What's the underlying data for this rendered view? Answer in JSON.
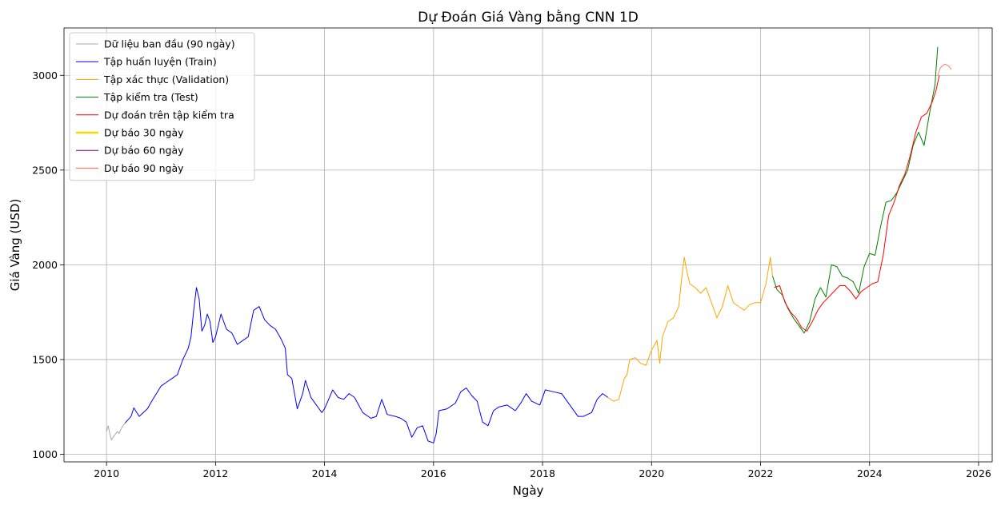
{
  "chart_data": {
    "type": "line",
    "title": "Dự Đoán Giá Vàng bằng CNN 1D",
    "xlabel": "Ngày",
    "ylabel": "Giá Vàng (USD)",
    "xlim": [
      2009.22,
      2026.25
    ],
    "ylim": [
      960,
      3250
    ],
    "xticks": [
      2010,
      2012,
      2014,
      2016,
      2018,
      2020,
      2022,
      2024,
      2026
    ],
    "yticks": [
      1000,
      1500,
      2000,
      2500,
      3000
    ],
    "grid": true,
    "legend_position": "upper-left",
    "series": [
      {
        "name": "Dữ liệu ban đầu (90 ngày)",
        "color": "#a9a9a9",
        "width": 1,
        "points": [
          [
            2010.0,
            1120
          ],
          [
            2010.03,
            1150
          ],
          [
            2010.06,
            1110
          ],
          [
            2010.09,
            1075
          ],
          [
            2010.12,
            1090
          ],
          [
            2010.16,
            1105
          ],
          [
            2010.2,
            1120
          ],
          [
            2010.23,
            1110
          ],
          [
            2010.26,
            1130
          ],
          [
            2010.3,
            1150
          ],
          [
            2010.34,
            1165
          ]
        ]
      },
      {
        "name": "Tập huấn luyện (Train)",
        "color": "#0000ff",
        "width": 1,
        "points": [
          [
            2010.34,
            1165
          ],
          [
            2010.45,
            1200
          ],
          [
            2010.5,
            1245
          ],
          [
            2010.6,
            1200
          ],
          [
            2010.75,
            1240
          ],
          [
            2010.85,
            1290
          ],
          [
            2011.0,
            1360
          ],
          [
            2011.1,
            1380
          ],
          [
            2011.2,
            1400
          ],
          [
            2011.3,
            1420
          ],
          [
            2011.4,
            1500
          ],
          [
            2011.5,
            1560
          ],
          [
            2011.55,
            1620
          ],
          [
            2011.6,
            1760
          ],
          [
            2011.65,
            1880
          ],
          [
            2011.7,
            1820
          ],
          [
            2011.75,
            1650
          ],
          [
            2011.8,
            1680
          ],
          [
            2011.85,
            1740
          ],
          [
            2011.9,
            1700
          ],
          [
            2011.95,
            1590
          ],
          [
            2012.0,
            1620
          ],
          [
            2012.1,
            1740
          ],
          [
            2012.2,
            1660
          ],
          [
            2012.3,
            1640
          ],
          [
            2012.4,
            1580
          ],
          [
            2012.5,
            1600
          ],
          [
            2012.6,
            1620
          ],
          [
            2012.7,
            1760
          ],
          [
            2012.8,
            1780
          ],
          [
            2012.9,
            1710
          ],
          [
            2013.0,
            1680
          ],
          [
            2013.1,
            1660
          ],
          [
            2013.2,
            1610
          ],
          [
            2013.28,
            1560
          ],
          [
            2013.32,
            1420
          ],
          [
            2013.4,
            1400
          ],
          [
            2013.5,
            1240
          ],
          [
            2013.6,
            1320
          ],
          [
            2013.65,
            1390
          ],
          [
            2013.75,
            1300
          ],
          [
            2013.85,
            1260
          ],
          [
            2013.95,
            1220
          ],
          [
            2014.0,
            1240
          ],
          [
            2014.15,
            1340
          ],
          [
            2014.25,
            1300
          ],
          [
            2014.35,
            1290
          ],
          [
            2014.45,
            1320
          ],
          [
            2014.55,
            1300
          ],
          [
            2014.7,
            1220
          ],
          [
            2014.85,
            1190
          ],
          [
            2014.95,
            1200
          ],
          [
            2015.05,
            1290
          ],
          [
            2015.15,
            1210
          ],
          [
            2015.3,
            1200
          ],
          [
            2015.4,
            1190
          ],
          [
            2015.5,
            1170
          ],
          [
            2015.6,
            1090
          ],
          [
            2015.7,
            1140
          ],
          [
            2015.8,
            1150
          ],
          [
            2015.9,
            1070
          ],
          [
            2016.0,
            1060
          ],
          [
            2016.05,
            1110
          ],
          [
            2016.1,
            1230
          ],
          [
            2016.25,
            1240
          ],
          [
            2016.4,
            1270
          ],
          [
            2016.5,
            1330
          ],
          [
            2016.6,
            1350
          ],
          [
            2016.7,
            1310
          ],
          [
            2016.8,
            1280
          ],
          [
            2016.9,
            1170
          ],
          [
            2017.0,
            1150
          ],
          [
            2017.1,
            1230
          ],
          [
            2017.2,
            1250
          ],
          [
            2017.35,
            1260
          ],
          [
            2017.5,
            1230
          ],
          [
            2017.6,
            1270
          ],
          [
            2017.7,
            1320
          ],
          [
            2017.8,
            1280
          ],
          [
            2017.95,
            1260
          ],
          [
            2018.05,
            1340
          ],
          [
            2018.2,
            1330
          ],
          [
            2018.35,
            1320
          ],
          [
            2018.45,
            1280
          ],
          [
            2018.55,
            1240
          ],
          [
            2018.65,
            1200
          ],
          [
            2018.75,
            1200
          ],
          [
            2018.9,
            1220
          ],
          [
            2019.0,
            1290
          ],
          [
            2019.1,
            1320
          ],
          [
            2019.2,
            1300
          ]
        ]
      },
      {
        "name": "Tập xác thực (Validation)",
        "color": "#ffa500",
        "width": 1,
        "points": [
          [
            2019.2,
            1300
          ],
          [
            2019.3,
            1280
          ],
          [
            2019.4,
            1290
          ],
          [
            2019.5,
            1400
          ],
          [
            2019.55,
            1420
          ],
          [
            2019.6,
            1500
          ],
          [
            2019.7,
            1510
          ],
          [
            2019.8,
            1480
          ],
          [
            2019.9,
            1470
          ],
          [
            2020.0,
            1550
          ],
          [
            2020.1,
            1600
          ],
          [
            2020.15,
            1480
          ],
          [
            2020.2,
            1620
          ],
          [
            2020.3,
            1700
          ],
          [
            2020.4,
            1720
          ],
          [
            2020.5,
            1780
          ],
          [
            2020.55,
            1920
          ],
          [
            2020.6,
            2040
          ],
          [
            2020.65,
            1960
          ],
          [
            2020.7,
            1900
          ],
          [
            2020.8,
            1880
          ],
          [
            2020.9,
            1850
          ],
          [
            2021.0,
            1880
          ],
          [
            2021.1,
            1800
          ],
          [
            2021.2,
            1720
          ],
          [
            2021.3,
            1780
          ],
          [
            2021.4,
            1890
          ],
          [
            2021.5,
            1800
          ],
          [
            2021.6,
            1780
          ],
          [
            2021.7,
            1760
          ],
          [
            2021.8,
            1790
          ],
          [
            2021.9,
            1800
          ],
          [
            2022.0,
            1800
          ],
          [
            2022.1,
            1900
          ],
          [
            2022.18,
            2040
          ],
          [
            2022.22,
            1940
          ]
        ]
      },
      {
        "name": "Tập kiểm tra (Test)",
        "color": "#008000",
        "width": 1,
        "points": [
          [
            2022.22,
            1940
          ],
          [
            2022.3,
            1870
          ],
          [
            2022.4,
            1840
          ],
          [
            2022.5,
            1770
          ],
          [
            2022.6,
            1720
          ],
          [
            2022.7,
            1680
          ],
          [
            2022.8,
            1640
          ],
          [
            2022.9,
            1700
          ],
          [
            2023.0,
            1820
          ],
          [
            2023.1,
            1880
          ],
          [
            2023.2,
            1830
          ],
          [
            2023.3,
            2000
          ],
          [
            2023.4,
            1990
          ],
          [
            2023.5,
            1940
          ],
          [
            2023.6,
            1930
          ],
          [
            2023.7,
            1910
          ],
          [
            2023.8,
            1850
          ],
          [
            2023.9,
            1990
          ],
          [
            2024.0,
            2060
          ],
          [
            2024.1,
            2050
          ],
          [
            2024.2,
            2200
          ],
          [
            2024.3,
            2330
          ],
          [
            2024.4,
            2340
          ],
          [
            2024.5,
            2380
          ],
          [
            2024.6,
            2440
          ],
          [
            2024.7,
            2500
          ],
          [
            2024.8,
            2630
          ],
          [
            2024.9,
            2700
          ],
          [
            2025.0,
            2630
          ],
          [
            2025.1,
            2800
          ],
          [
            2025.2,
            2950
          ],
          [
            2025.25,
            3150
          ]
        ]
      },
      {
        "name": "Dự đoán trên tập kiểm tra",
        "color": "#ff0000",
        "width": 1,
        "points": [
          [
            2022.25,
            1880
          ],
          [
            2022.35,
            1890
          ],
          [
            2022.45,
            1800
          ],
          [
            2022.55,
            1750
          ],
          [
            2022.65,
            1720
          ],
          [
            2022.75,
            1670
          ],
          [
            2022.85,
            1650
          ],
          [
            2022.95,
            1700
          ],
          [
            2023.05,
            1760
          ],
          [
            2023.15,
            1800
          ],
          [
            2023.25,
            1830
          ],
          [
            2023.35,
            1860
          ],
          [
            2023.45,
            1890
          ],
          [
            2023.55,
            1890
          ],
          [
            2023.65,
            1860
          ],
          [
            2023.75,
            1820
          ],
          [
            2023.85,
            1860
          ],
          [
            2023.95,
            1880
          ],
          [
            2024.05,
            1900
          ],
          [
            2024.15,
            1910
          ],
          [
            2024.25,
            2050
          ],
          [
            2024.35,
            2260
          ],
          [
            2024.45,
            2330
          ],
          [
            2024.55,
            2420
          ],
          [
            2024.65,
            2480
          ],
          [
            2024.75,
            2580
          ],
          [
            2024.85,
            2700
          ],
          [
            2024.95,
            2780
          ],
          [
            2025.05,
            2800
          ],
          [
            2025.15,
            2860
          ],
          [
            2025.22,
            2920
          ],
          [
            2025.28,
            3000
          ]
        ]
      },
      {
        "name": "Dự báo 30 ngày",
        "color": "#ffd700",
        "width": 2.5,
        "points": []
      },
      {
        "name": "Dự báo 60 ngày",
        "color": "#800080",
        "width": 0.8,
        "points": []
      },
      {
        "name": "Dự báo 90 ngày",
        "color": "#ff6347",
        "width": 0.8,
        "points": [
          [
            2025.25,
            3000
          ],
          [
            2025.3,
            3040
          ],
          [
            2025.38,
            3060
          ],
          [
            2025.45,
            3050
          ],
          [
            2025.5,
            3030
          ]
        ]
      }
    ]
  }
}
